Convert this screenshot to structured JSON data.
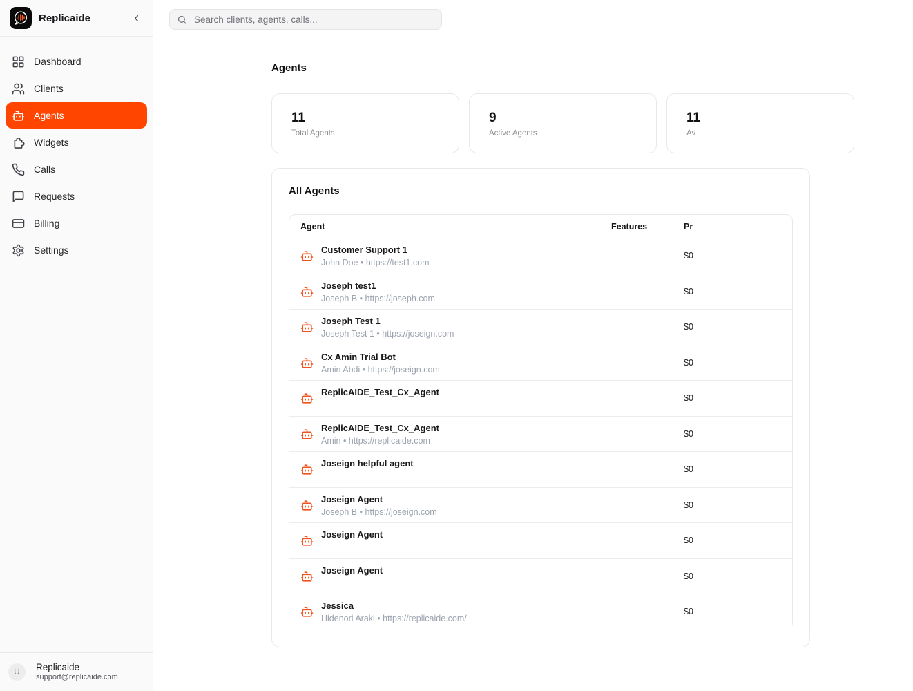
{
  "brand": {
    "name": "Replicaide"
  },
  "sidebar": {
    "items": [
      {
        "label": "Dashboard",
        "icon": "dashboard-icon",
        "active": false
      },
      {
        "label": "Clients",
        "icon": "clients-icon",
        "active": false
      },
      {
        "label": "Agents",
        "icon": "bot-icon",
        "active": true
      },
      {
        "label": "Widgets",
        "icon": "puzzle-icon",
        "active": false
      },
      {
        "label": "Calls",
        "icon": "phone-icon",
        "active": false
      },
      {
        "label": "Requests",
        "icon": "message-icon",
        "active": false
      },
      {
        "label": "Billing",
        "icon": "credit-card-icon",
        "active": false
      },
      {
        "label": "Settings",
        "icon": "gear-icon",
        "active": false
      }
    ],
    "user": {
      "initial": "U",
      "name": "Replicaide",
      "email": "support@replicaide.com"
    }
  },
  "header": {
    "search_placeholder": "Search clients, agents, calls..."
  },
  "page": {
    "title": "Agents",
    "stats": [
      {
        "value": "11",
        "label": "Total Agents"
      },
      {
        "value": "9",
        "label": "Active Agents"
      },
      {
        "value": "11",
        "label": "Av"
      }
    ],
    "panel": {
      "title": "All Agents",
      "table": {
        "columns": [
          "Agent",
          "Features",
          "Pr"
        ],
        "rows": [
          {
            "name": "Customer Support 1",
            "subtitle": "John Doe • https://test1.com",
            "features": "",
            "price": "$0"
          },
          {
            "name": "Joseph test1",
            "subtitle": "Joseph B • https://joseph.com",
            "features": "",
            "price": "$0"
          },
          {
            "name": "Joseph Test 1",
            "subtitle": "Joseph Test 1 • https://joseign.com",
            "features": "",
            "price": "$0"
          },
          {
            "name": "Cx Amin Trial Bot",
            "subtitle": "Amin Abdi • https://joseign.com",
            "features": "",
            "price": "$0"
          },
          {
            "name": "ReplicAIDE_Test_Cx_Agent",
            "subtitle": "",
            "features": "",
            "price": "$0"
          },
          {
            "name": "ReplicAIDE_Test_Cx_Agent",
            "subtitle": "Amin • https://replicaide.com",
            "features": "",
            "price": "$0"
          },
          {
            "name": "Joseign helpful agent",
            "subtitle": "",
            "features": "",
            "price": "$0"
          },
          {
            "name": "Joseign Agent",
            "subtitle": "Joseph B • https://joseign.com",
            "features": "",
            "price": "$0"
          },
          {
            "name": "Joseign Agent",
            "subtitle": "",
            "features": "",
            "price": "$0"
          },
          {
            "name": "Joseign Agent",
            "subtitle": "",
            "features": "",
            "price": "$0"
          },
          {
            "name": "Jessica",
            "subtitle": "Hidenori Araki • https://replicaide.com/",
            "features": "",
            "price": "$0"
          }
        ]
      }
    }
  },
  "colors": {
    "accent": "#FF4500",
    "bot_icon": "#F4521C",
    "sidebar_bg": "#FAFAFA"
  }
}
